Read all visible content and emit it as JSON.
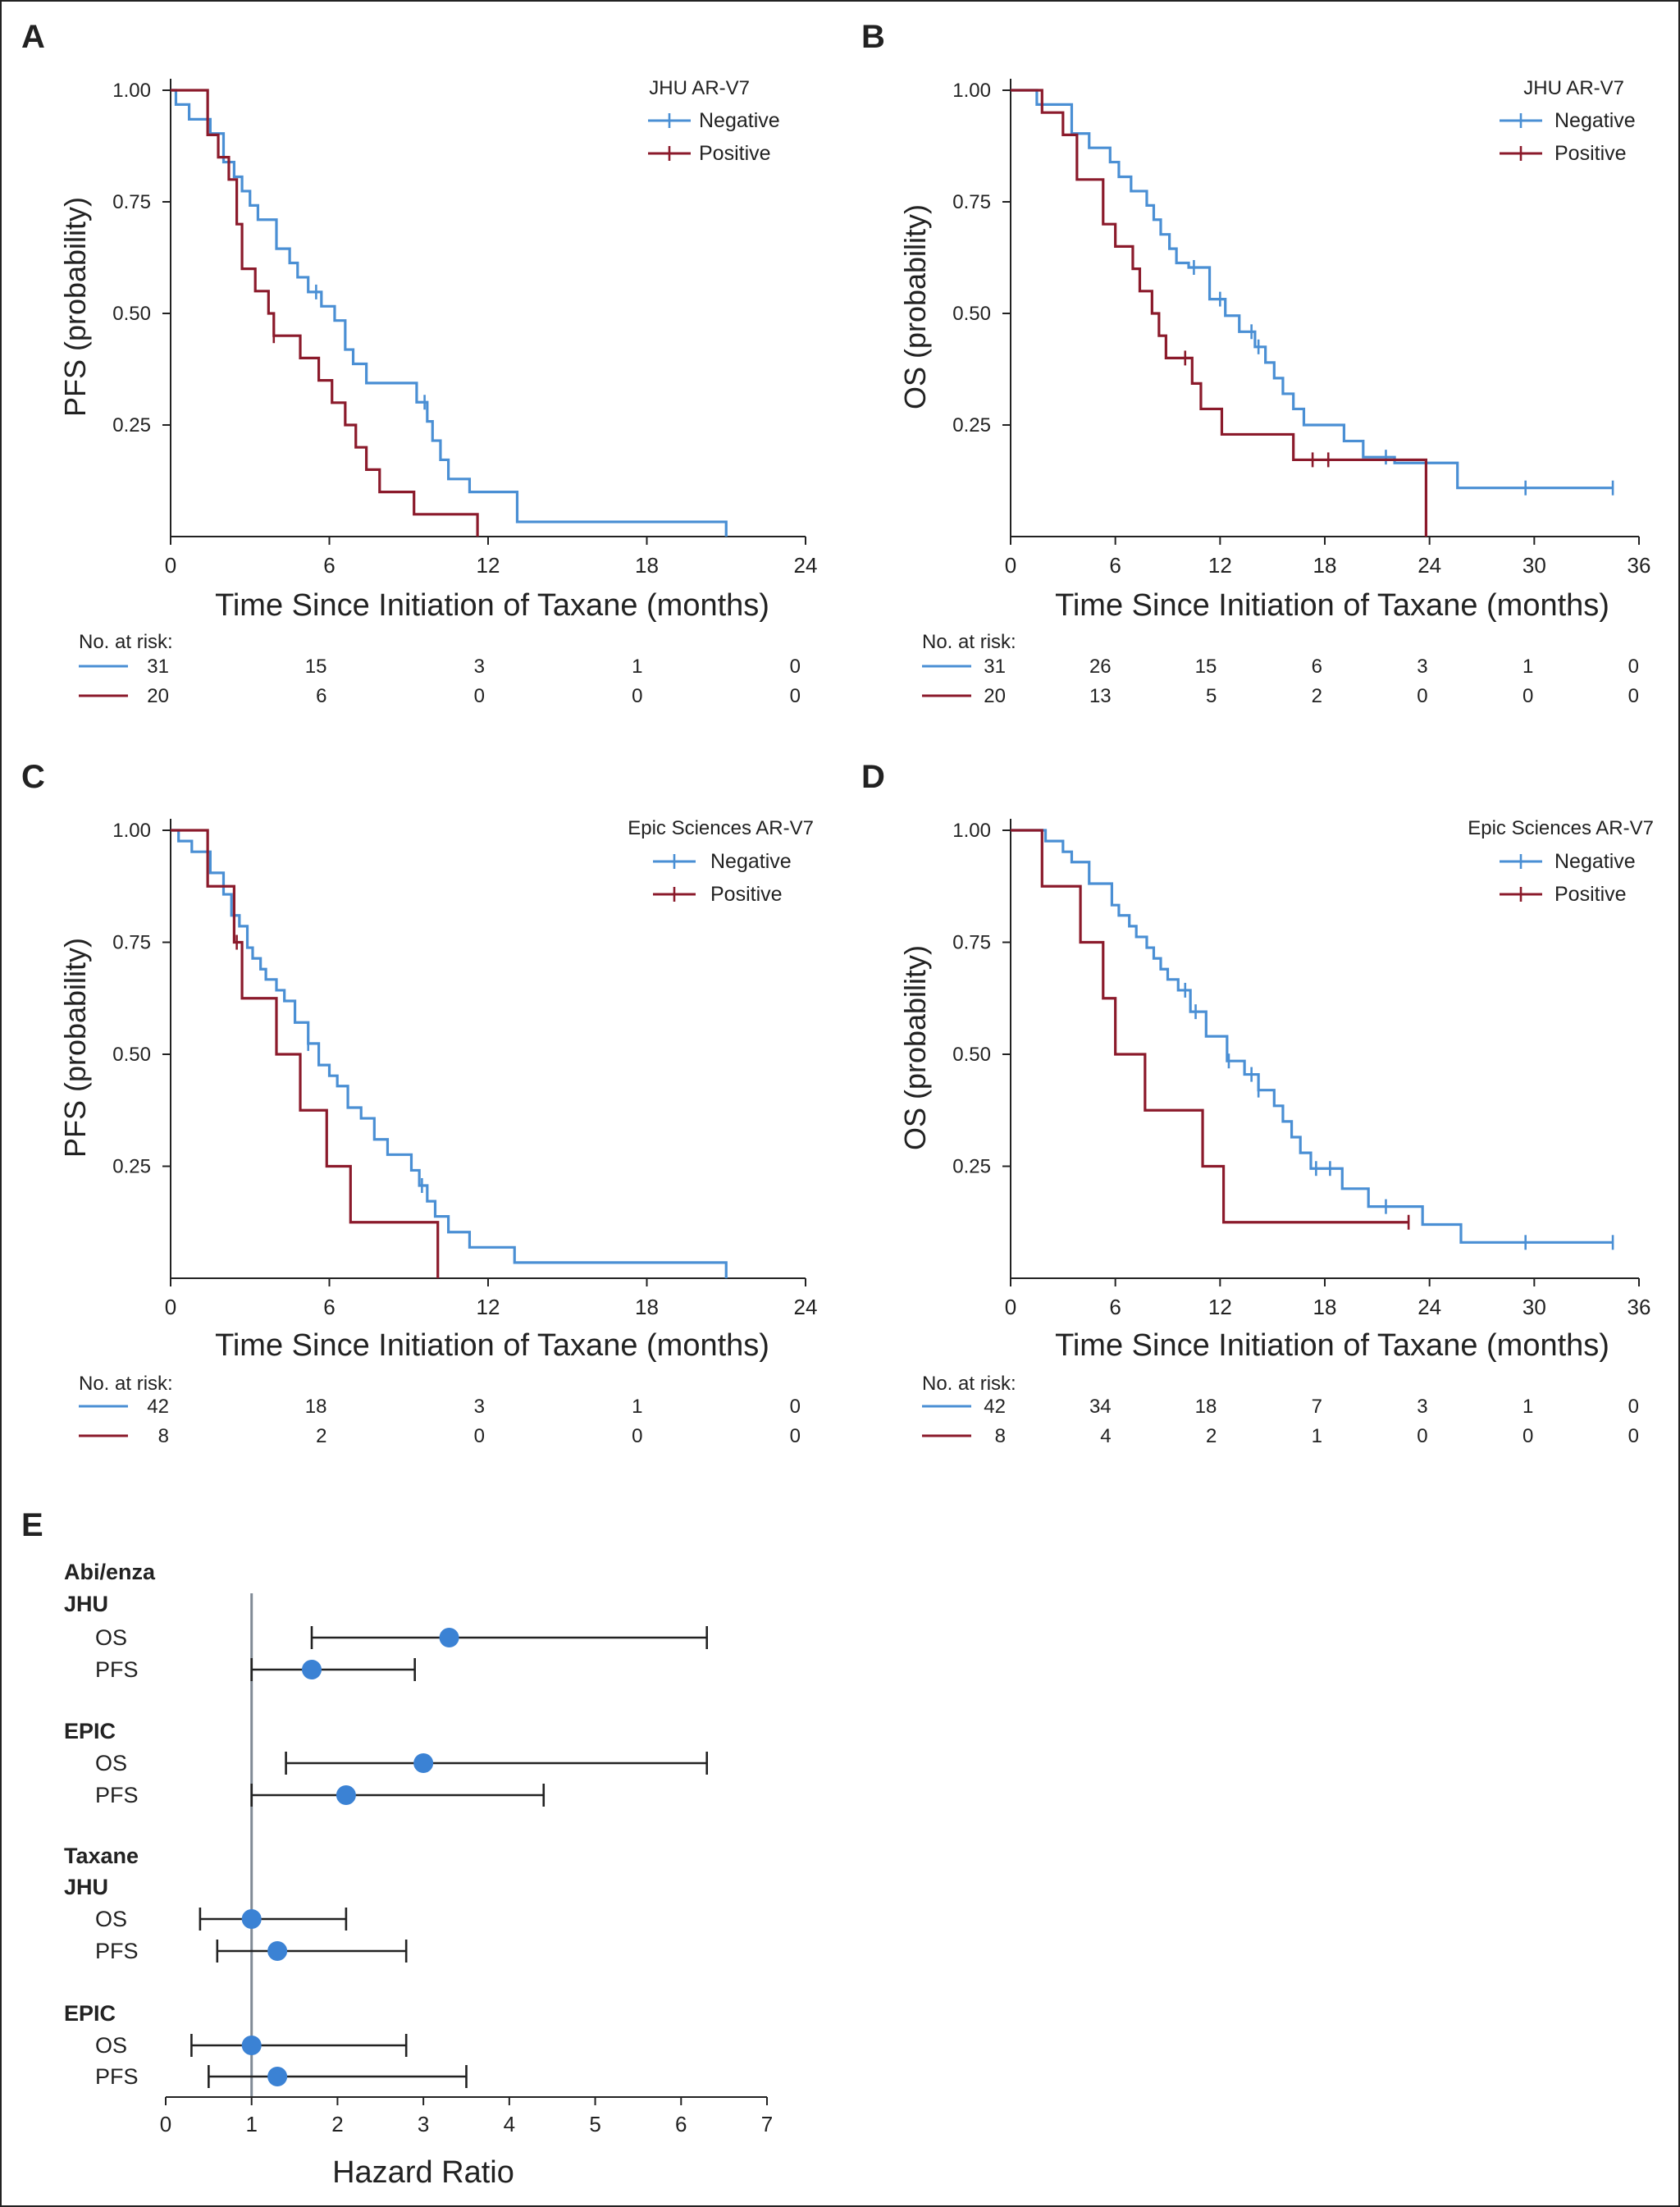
{
  "chart_data": [
    {
      "panel": "A",
      "type": "line",
      "subtype": "kaplan-meier",
      "legend_title": "JHU AR-V7",
      "ylabel": "PFS (probability)",
      "xlabel": "Time Since Initiation of Taxane (months)",
      "xlim": [
        0,
        24
      ],
      "ylim": [
        0,
        1
      ],
      "xticks": [
        "0",
        "6",
        "12",
        "18",
        "24"
      ],
      "yticks": [
        "0.25",
        "0.50",
        "0.75",
        "1.00"
      ],
      "risk_header": "No. at risk:",
      "series": [
        {
          "name": "Negative",
          "color": "#4a8fd4",
          "x": [
            0,
            0.2,
            0.7,
            1.5,
            2.0,
            2.4,
            2.7,
            3.0,
            3.3,
            3.6,
            4.0,
            4.5,
            4.8,
            5.2,
            5.7,
            6.2,
            6.6,
            6.9,
            7.4,
            8.6,
            9.3,
            9.7,
            9.9,
            10.2,
            10.5,
            10.8,
            11.3,
            12.7,
            13.1,
            21.0
          ],
          "y": [
            1.0,
            0.968,
            0.935,
            0.903,
            0.839,
            0.806,
            0.774,
            0.742,
            0.71,
            0.71,
            0.645,
            0.613,
            0.581,
            0.548,
            0.516,
            0.484,
            0.419,
            0.387,
            0.344,
            0.344,
            0.301,
            0.258,
            0.215,
            0.172,
            0.129,
            0.129,
            0.1,
            0.1,
            0.033,
            0.0
          ],
          "censor_x": [
            5.5,
            9.6
          ]
        },
        {
          "name": "Positive",
          "color": "#8b1a2b",
          "x": [
            0,
            1.4,
            1.8,
            2.2,
            2.5,
            2.7,
            3.2,
            3.7,
            3.9,
            4.1,
            4.9,
            5.6,
            6.1,
            6.6,
            7.0,
            7.4,
            7.9,
            9.2,
            11.6
          ],
          "y": [
            1.0,
            0.9,
            0.85,
            0.8,
            0.7,
            0.6,
            0.55,
            0.5,
            0.45,
            0.45,
            0.4,
            0.35,
            0.3,
            0.25,
            0.2,
            0.15,
            0.1,
            0.05,
            0.0
          ],
          "censor_x": [
            3.9
          ]
        }
      ],
      "risk": [
        {
          "name": "Negative",
          "values": [
            "31",
            "15",
            "3",
            "1",
            "0"
          ]
        },
        {
          "name": "Positive",
          "values": [
            "20",
            "6",
            "0",
            "0",
            "0"
          ]
        }
      ]
    },
    {
      "panel": "B",
      "type": "line",
      "subtype": "kaplan-meier",
      "legend_title": "JHU AR-V7",
      "ylabel": "OS (probability)",
      "xlabel": "Time Since Initiation of Taxane (months)",
      "xlim": [
        0,
        36
      ],
      "ylim": [
        0,
        1
      ],
      "xticks": [
        "0",
        "6",
        "12",
        "18",
        "24",
        "30",
        "36"
      ],
      "yticks": [
        "0.25",
        "0.50",
        "0.75",
        "1.00"
      ],
      "risk_header": "No. at risk:",
      "series": [
        {
          "name": "Negative",
          "color": "#4a8fd4",
          "x": [
            0,
            1.5,
            3.5,
            4.5,
            5.7,
            6.2,
            6.9,
            7.8,
            8.2,
            8.6,
            9.1,
            9.5,
            10.2,
            11.4,
            12.3,
            13.1,
            14.0,
            14.6,
            15.1,
            15.6,
            16.2,
            16.8,
            19.1,
            20.2,
            22.0,
            25.6,
            34.5
          ],
          "y": [
            1.0,
            0.968,
            0.903,
            0.871,
            0.839,
            0.806,
            0.774,
            0.742,
            0.71,
            0.677,
            0.645,
            0.613,
            0.603,
            0.532,
            0.495,
            0.459,
            0.425,
            0.39,
            0.355,
            0.32,
            0.286,
            0.25,
            0.214,
            0.178,
            0.165,
            0.109,
            0.109
          ],
          "censor_x": [
            10.5,
            12.0,
            13.8,
            14.2,
            21.5,
            29.5,
            34.5
          ]
        },
        {
          "name": "Positive",
          "color": "#8b1a2b",
          "x": [
            0,
            1.8,
            3.0,
            3.8,
            5.3,
            6.0,
            7.0,
            7.4,
            8.1,
            8.5,
            8.9,
            10.4,
            10.9,
            12.1,
            16.2,
            23.8
          ],
          "y": [
            1.0,
            0.95,
            0.9,
            0.8,
            0.7,
            0.65,
            0.6,
            0.55,
            0.5,
            0.45,
            0.4,
            0.343,
            0.286,
            0.229,
            0.172,
            0.0
          ],
          "censor_x": [
            10.0,
            17.3,
            18.2
          ]
        }
      ],
      "risk": [
        {
          "name": "Negative",
          "values": [
            "31",
            "26",
            "15",
            "6",
            "3",
            "1",
            "0"
          ]
        },
        {
          "name": "Positive",
          "values": [
            "20",
            "13",
            "5",
            "2",
            "0",
            "0",
            "0"
          ]
        }
      ]
    },
    {
      "panel": "C",
      "type": "line",
      "subtype": "kaplan-meier",
      "legend_title": "Epic Sciences AR-V7",
      "ylabel": "PFS (probability)",
      "xlabel": "Time Since Initiation of Taxane (months)",
      "xlim": [
        0,
        24
      ],
      "ylim": [
        0,
        1
      ],
      "xticks": [
        "0",
        "6",
        "12",
        "18",
        "24"
      ],
      "yticks": [
        "0.25",
        "0.50",
        "0.75",
        "1.00"
      ],
      "risk_header": "No. at risk:",
      "series": [
        {
          "name": "Negative",
          "color": "#4a8fd4",
          "x": [
            0,
            0.3,
            0.8,
            1.5,
            2.0,
            2.3,
            2.6,
            2.9,
            3.1,
            3.4,
            3.6,
            4.0,
            4.3,
            4.7,
            5.2,
            5.6,
            6.0,
            6.3,
            6.7,
            7.2,
            7.7,
            8.2,
            9.1,
            9.4,
            9.7,
            10.0,
            10.5,
            10.9,
            11.3,
            12.1,
            13.0,
            21.0
          ],
          "y": [
            1.0,
            0.976,
            0.952,
            0.905,
            0.857,
            0.81,
            0.786,
            0.738,
            0.714,
            0.69,
            0.667,
            0.643,
            0.619,
            0.571,
            0.524,
            0.476,
            0.452,
            0.429,
            0.381,
            0.357,
            0.31,
            0.276,
            0.241,
            0.207,
            0.172,
            0.138,
            0.103,
            0.103,
            0.069,
            0.069,
            0.035,
            0.0
          ],
          "censor_x": [
            5.2,
            9.5
          ]
        },
        {
          "name": "Positive",
          "color": "#8b1a2b",
          "x": [
            0,
            1.4,
            2.4,
            2.7,
            4.0,
            4.9,
            5.9,
            6.8,
            10.1
          ],
          "y": [
            1.0,
            0.875,
            0.75,
            0.625,
            0.5,
            0.375,
            0.25,
            0.125,
            0.0
          ],
          "censor_x": [
            2.5
          ]
        }
      ],
      "risk": [
        {
          "name": "Negative",
          "values": [
            "42",
            "18",
            "3",
            "1",
            "0"
          ]
        },
        {
          "name": "Positive",
          "values": [
            "8",
            "2",
            "0",
            "0",
            "0"
          ]
        }
      ]
    },
    {
      "panel": "D",
      "type": "line",
      "subtype": "kaplan-meier",
      "legend_title": "Epic Sciences AR-V7",
      "ylabel": "OS (probability)",
      "xlabel": "Time Since Initiation of Taxane (months)",
      "xlim": [
        0,
        36
      ],
      "ylim": [
        0,
        1
      ],
      "xticks": [
        "0",
        "6",
        "12",
        "18",
        "24",
        "30",
        "36"
      ],
      "yticks": [
        "0.25",
        "0.50",
        "0.75",
        "1.00"
      ],
      "risk_header": "No. at risk:",
      "series": [
        {
          "name": "Negative",
          "color": "#4a8fd4",
          "x": [
            0,
            2.0,
            3.0,
            3.5,
            4.5,
            5.8,
            6.2,
            6.8,
            7.2,
            7.8,
            8.2,
            8.6,
            9.0,
            9.6,
            10.3,
            11.2,
            12.4,
            13.4,
            14.2,
            15.1,
            15.6,
            16.1,
            16.6,
            17.2,
            19.0,
            20.5,
            23.6,
            25.8,
            34.5
          ],
          "y": [
            1.0,
            0.976,
            0.952,
            0.929,
            0.881,
            0.833,
            0.81,
            0.786,
            0.762,
            0.738,
            0.714,
            0.69,
            0.667,
            0.643,
            0.595,
            0.54,
            0.485,
            0.455,
            0.42,
            0.385,
            0.35,
            0.315,
            0.28,
            0.245,
            0.2,
            0.16,
            0.12,
            0.08,
            0.08
          ],
          "censor_x": [
            10.0,
            10.6,
            12.5,
            13.8,
            14.2,
            17.5,
            18.3,
            21.5,
            29.5,
            34.5
          ]
        },
        {
          "name": "Positive",
          "color": "#8b1a2b",
          "x": [
            0,
            1.8,
            4.0,
            5.3,
            6.0,
            7.7,
            11.0,
            12.2,
            22.8
          ],
          "y": [
            1.0,
            0.875,
            0.75,
            0.625,
            0.5,
            0.375,
            0.25,
            0.125,
            0.125
          ],
          "censor_x": [
            22.8
          ]
        }
      ],
      "risk": [
        {
          "name": "Negative",
          "values": [
            "42",
            "34",
            "18",
            "7",
            "3",
            "1",
            "0"
          ]
        },
        {
          "name": "Positive",
          "values": [
            "8",
            "4",
            "2",
            "1",
            "0",
            "0",
            "0"
          ]
        }
      ]
    },
    {
      "panel": "E",
      "type": "scatter",
      "subtype": "forest",
      "xlabel": "Hazard Ratio",
      "xlim": [
        0,
        7
      ],
      "xticks": [
        "0",
        "1",
        "2",
        "3",
        "4",
        "5",
        "6",
        "7"
      ],
      "reference_line": 1,
      "point_color": "#3b82d4",
      "headers": [
        {
          "text": "Abi/enza",
          "before_row": 0
        },
        {
          "text": "JHU",
          "before_row": 0
        },
        {
          "text": "EPIC",
          "before_row": 2
        },
        {
          "text": "Taxane",
          "before_row": 4
        },
        {
          "text": "JHU",
          "before_row": 4
        },
        {
          "text": "EPIC",
          "before_row": 6
        }
      ],
      "rows": [
        {
          "label": "OS",
          "hr": 3.3,
          "low": 1.7,
          "high": 6.3
        },
        {
          "label": "PFS",
          "hr": 1.7,
          "low": 1.0,
          "high": 2.9
        },
        {
          "label": "OS",
          "hr": 3.0,
          "low": 1.4,
          "high": 6.3
        },
        {
          "label": "PFS",
          "hr": 2.1,
          "low": 1.0,
          "high": 4.4
        },
        {
          "label": "OS",
          "hr": 1.0,
          "low": 0.4,
          "high": 2.1
        },
        {
          "label": "PFS",
          "hr": 1.3,
          "low": 0.6,
          "high": 2.8
        },
        {
          "label": "OS",
          "hr": 1.0,
          "low": 0.3,
          "high": 2.8
        },
        {
          "label": "PFS",
          "hr": 1.3,
          "low": 0.5,
          "high": 3.5
        }
      ]
    }
  ]
}
